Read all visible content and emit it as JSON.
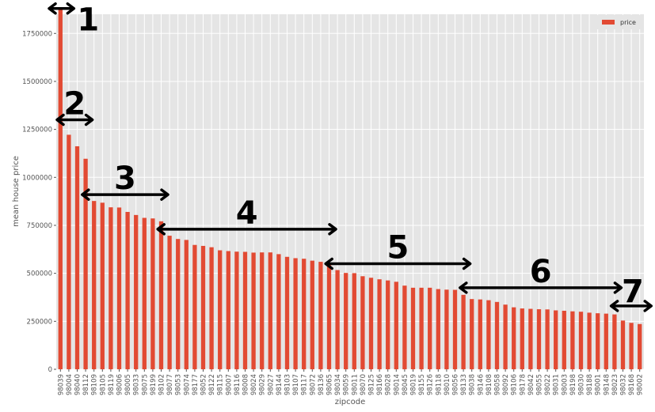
{
  "chart_data": {
    "type": "bar",
    "xlabel": "zipcode",
    "ylabel": "mean house price",
    "ylim": [
      0,
      1850000
    ],
    "yticks": [
      0,
      250000,
      500000,
      750000,
      1000000,
      1250000,
      1500000,
      1750000
    ],
    "ytick_labels": [
      "0",
      "250000",
      "500000",
      "750000",
      "1000000",
      "1250000",
      "1500000",
      "1750000"
    ],
    "legend": {
      "label": "price",
      "position": "top-right"
    },
    "grid": true,
    "bar_color": "#E24A33",
    "background_color": "#E5E5E5",
    "categories": [
      "98039",
      "98004",
      "98040",
      "98112",
      "98109",
      "98105",
      "98119",
      "98006",
      "98005",
      "98033",
      "98075",
      "98199",
      "98102",
      "98077",
      "98053",
      "98074",
      "98177",
      "98052",
      "98122",
      "98115",
      "98007",
      "98116",
      "98008",
      "98024",
      "98029",
      "98027",
      "98144",
      "98103",
      "98107",
      "98117",
      "98072",
      "98136",
      "98065",
      "98034",
      "98059",
      "98011",
      "98070",
      "98125",
      "98166",
      "98028",
      "98014",
      "98045",
      "98019",
      "98155",
      "98126",
      "98118",
      "98010",
      "98056",
      "98133",
      "98038",
      "98146",
      "98108",
      "98058",
      "98092",
      "98106",
      "98178",
      "98042",
      "98055",
      "98022",
      "98031",
      "98003",
      "98198",
      "98030",
      "98188",
      "98001",
      "98148",
      "98023",
      "98032",
      "98168",
      "98002"
    ],
    "values": [
      1880000,
      1222000,
      1162000,
      1097000,
      877000,
      868000,
      844000,
      843000,
      820000,
      804000,
      789000,
      786000,
      771000,
      696000,
      679000,
      674000,
      648000,
      643000,
      636000,
      620000,
      616000,
      613000,
      612000,
      608000,
      609000,
      609000,
      600000,
      586000,
      579000,
      576000,
      566000,
      560000,
      548000,
      517000,
      502000,
      501000,
      485000,
      477000,
      469000,
      463000,
      456000,
      436000,
      425000,
      425000,
      425000,
      418000,
      415000,
      414000,
      388000,
      366000,
      364000,
      360000,
      351000,
      337000,
      323000,
      317000,
      315000,
      313000,
      312000,
      307000,
      305000,
      302000,
      300000,
      295000,
      292000,
      290000,
      286000,
      254000,
      242000,
      236000
    ],
    "annotations": [
      {
        "label": "1",
        "from": "98039",
        "to": "98039",
        "y": 1880000
      },
      {
        "label": "2",
        "from": "98004",
        "to": "98112",
        "y": 1300000
      },
      {
        "label": "3",
        "from": "98109",
        "to": "98102",
        "y": 910000
      },
      {
        "label": "4",
        "from": "98077",
        "to": "98065",
        "y": 730000
      },
      {
        "label": "5",
        "from": "98034",
        "to": "98133",
        "y": 550000
      },
      {
        "label": "6",
        "from": "98038",
        "to": "98023",
        "y": 425000
      },
      {
        "label": "7",
        "from": "98032",
        "to": "98002",
        "y": 330000
      }
    ]
  }
}
